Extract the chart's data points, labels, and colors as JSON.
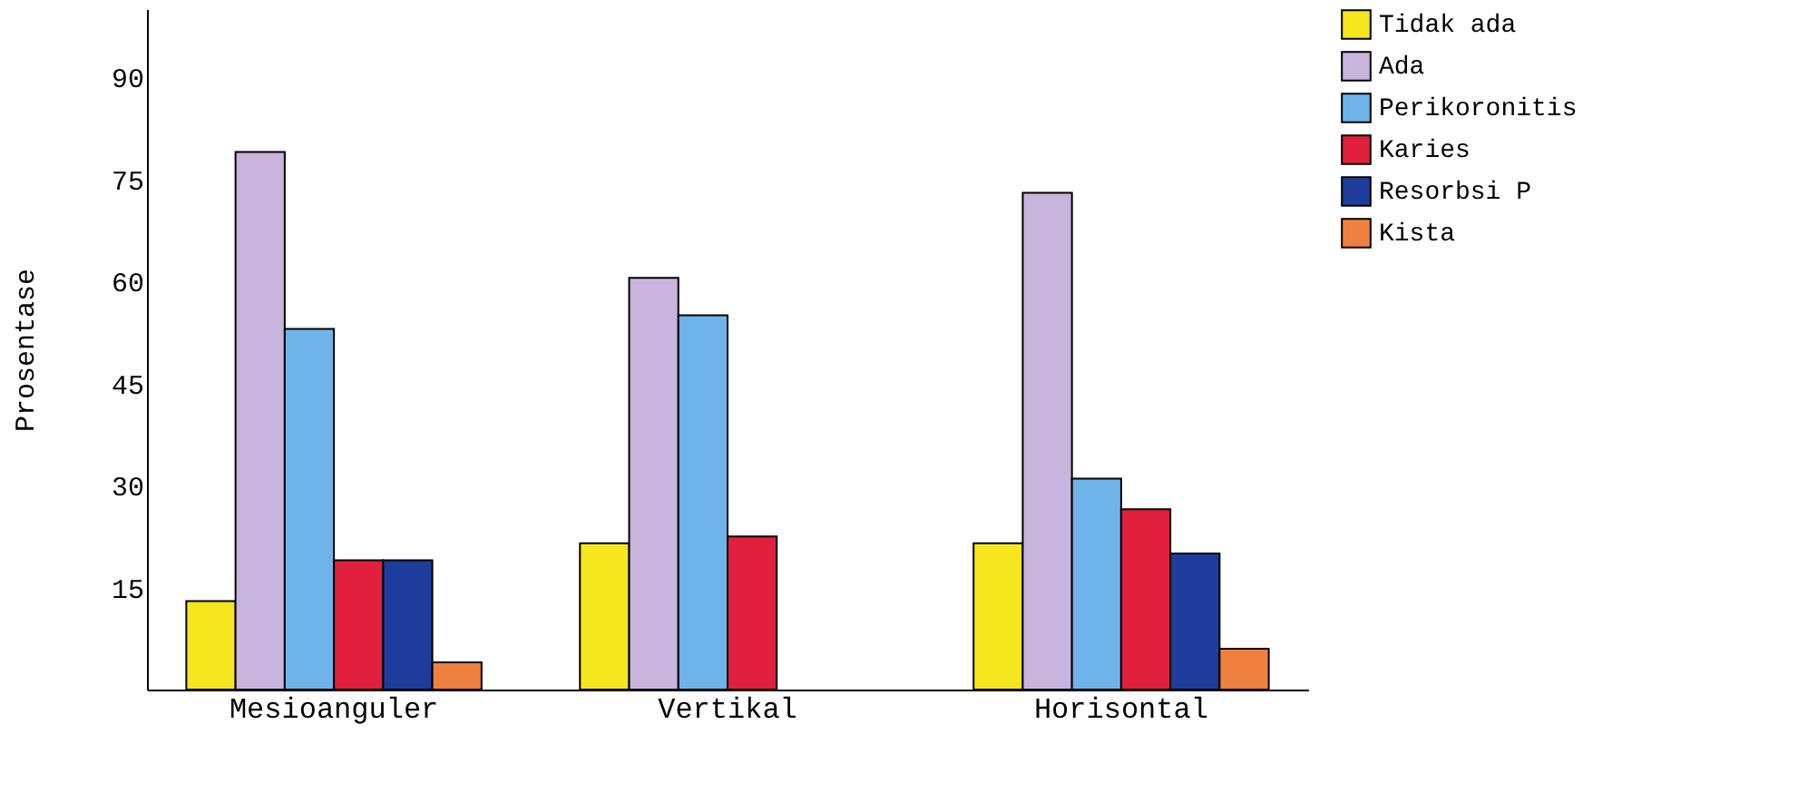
{
  "chart_data": {
    "type": "bar",
    "ylabel": "Prosentase",
    "categories": [
      "Mesioanguler",
      "Vertikal",
      "Horisontal"
    ],
    "series": [
      {
        "name": "Tidak ada",
        "color": "#f5e61e",
        "values": [
          13,
          21.5,
          21.5
        ]
      },
      {
        "name": "Ada",
        "color": "#c8b4dc",
        "values": [
          79,
          60.5,
          73
        ]
      },
      {
        "name": "Perikoronitis",
        "color": "#6eb4ea",
        "values": [
          53,
          55,
          31
        ]
      },
      {
        "name": "Karies",
        "color": "#e0203c",
        "values": [
          19,
          22.5,
          26.5
        ]
      },
      {
        "name": "Resorbsi P",
        "color": "#1e3c9c",
        "values": [
          19,
          null,
          20
        ]
      },
      {
        "name": "Kista",
        "color": "#f08040",
        "values": [
          4,
          null,
          6
        ]
      }
    ],
    "ylim": [
      0,
      100
    ],
    "yticks": [
      15,
      30,
      45,
      60,
      75,
      90
    ],
    "legend": "top right"
  }
}
